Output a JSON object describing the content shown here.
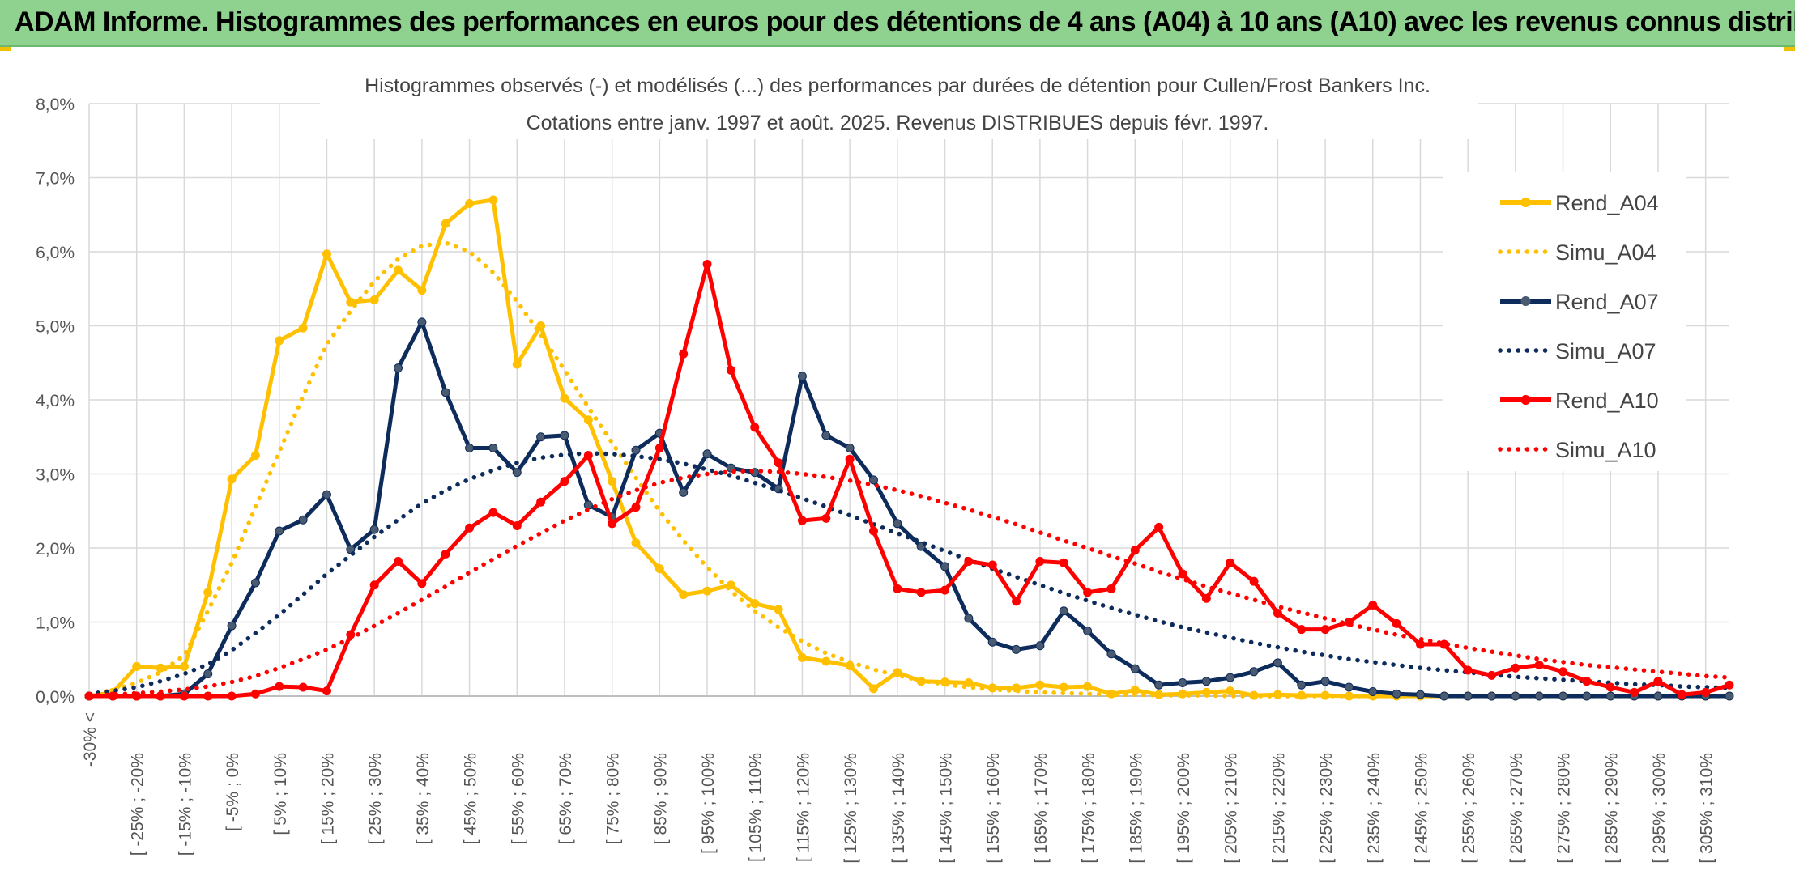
{
  "banner": {
    "title": "ADAM Informe. Histogrammes des performances en euros pour des détentions de 4 ans (A04) à 10 ans (A10) avec les revenus connus distribués"
  },
  "chart_data": {
    "type": "line",
    "title": "Histogrammes observés (-) et modélisés (...) des performances par durées de détention pour Cullen/Frost Bankers Inc.",
    "subtitle": "Cotations entre janv. 1997 et août. 2025. Revenus DISTRIBUES depuis févr. 1997.",
    "xlabel": "",
    "ylabel": "",
    "ylim": [
      0,
      8
    ],
    "yticks": [
      "0,0%",
      "1,0%",
      "2,0%",
      "3,0%",
      "4,0%",
      "5,0%",
      "6,0%",
      "7,0%",
      "8,0%"
    ],
    "grid": true,
    "legend_position": "right",
    "x_tick_labels": [
      "-30% <",
      "[ -25% ; -20%",
      "[ -15% ; -10%",
      "[ -5% ; 0%",
      "[ 5% ; 10%",
      "[ 15% ; 20%",
      "[ 25% ; 30%",
      "[ 35% ; 40%",
      "[ 45% ; 50%",
      "[ 55% ; 60%",
      "[ 65% ; 70%",
      "[ 75% ; 80%",
      "[ 85% ; 90%",
      "[ 95% ; 100%",
      "[ 105% ; 110%",
      "[ 115% ; 120%",
      "[ 125% ; 130%",
      "[ 135% ; 140%",
      "[ 145% ; 150%",
      "[ 155% ; 160%",
      "[ 165% ; 170%",
      "[ 175% ; 180%",
      "[ 185% ; 190%",
      "[ 195% ; 200%",
      "[ 205% ; 210%",
      "[ 215% ; 220%",
      "[ 225% ; 230%",
      "[ 235% ; 240%",
      "[ 245% ; 250%",
      "[ 255% ; 260%",
      "[ 265% ; 270%",
      "[ 275% ; 280%",
      "[ 285% ; 290%",
      "[ 295% ; 300%",
      "[ 305% ; 310%"
    ],
    "categories_count": 70,
    "series": [
      {
        "name": "Rend_A04",
        "style": "solid",
        "color": "#ffc000",
        "markers": true,
        "values": [
          0.0,
          0.05,
          0.4,
          0.38,
          0.4,
          1.4,
          2.93,
          3.25,
          4.8,
          4.97,
          5.97,
          5.32,
          5.35,
          5.75,
          5.48,
          6.38,
          6.65,
          6.7,
          4.48,
          5.0,
          4.02,
          3.73,
          2.9,
          2.07,
          1.72,
          1.37,
          1.42,
          1.5,
          1.25,
          1.17,
          0.52,
          0.47,
          0.41,
          0.1,
          0.32,
          0.2,
          0.19,
          0.18,
          0.11,
          0.11,
          0.15,
          0.12,
          0.13,
          0.03,
          0.08,
          0.02,
          0.03,
          0.05,
          0.07,
          0.01,
          0.02,
          0.01,
          0.01,
          0.0,
          0.0,
          0.0,
          0.0,
          0.0,
          0.0,
          0.0,
          0.0,
          0.0,
          0.0,
          0.0,
          0.0,
          0.0,
          0.0,
          0.0,
          0.0,
          0.0
        ]
      },
      {
        "name": "Simu_A04",
        "style": "dotted",
        "color": "#ffc000",
        "markers": false,
        "values": [
          0.02,
          0.08,
          0.18,
          0.32,
          0.55,
          1.15,
          1.8,
          2.55,
          3.3,
          4.05,
          4.75,
          5.2,
          5.6,
          5.9,
          6.08,
          6.12,
          6.0,
          5.72,
          5.33,
          4.88,
          4.4,
          3.9,
          3.42,
          2.95,
          2.5,
          2.1,
          1.74,
          1.42,
          1.15,
          0.93,
          0.74,
          0.58,
          0.46,
          0.36,
          0.28,
          0.21,
          0.16,
          0.12,
          0.09,
          0.07,
          0.05,
          0.04,
          0.03,
          0.02,
          0.02,
          0.01,
          0.01,
          0.01,
          0.0,
          0.0,
          0.0,
          0.0,
          0.0,
          0.0,
          0.0,
          0.0,
          0.0,
          0.0,
          0.0,
          0.0,
          0.0,
          0.0,
          0.0,
          0.0,
          0.0,
          0.0,
          0.0,
          0.0,
          0.0,
          0.0
        ]
      },
      {
        "name": "Rend_A07",
        "style": "solid",
        "color": "#0d2c5c",
        "markers": true,
        "values": [
          0.0,
          0.0,
          0.0,
          0.0,
          0.03,
          0.3,
          0.95,
          1.53,
          2.23,
          2.38,
          2.72,
          1.98,
          2.25,
          4.43,
          5.05,
          4.1,
          3.35,
          3.35,
          3.02,
          3.5,
          3.52,
          2.58,
          2.42,
          3.32,
          3.55,
          2.75,
          3.27,
          3.08,
          3.02,
          2.8,
          4.32,
          3.52,
          3.35,
          2.92,
          2.33,
          2.02,
          1.75,
          1.05,
          0.73,
          0.63,
          0.68,
          1.15,
          0.88,
          0.57,
          0.37,
          0.15,
          0.18,
          0.2,
          0.25,
          0.33,
          0.45,
          0.15,
          0.2,
          0.12,
          0.06,
          0.03,
          0.02,
          0.0,
          0.0,
          0.0,
          0.0,
          0.0,
          0.0,
          0.0,
          0.0,
          0.0,
          0.0,
          0.0,
          0.0,
          0.0
        ]
      },
      {
        "name": "Simu_A07",
        "style": "dotted",
        "color": "#0d2c5c",
        "markers": false,
        "values": [
          0.03,
          0.07,
          0.12,
          0.2,
          0.3,
          0.43,
          0.62,
          0.85,
          1.1,
          1.37,
          1.65,
          1.9,
          2.15,
          2.38,
          2.6,
          2.78,
          2.93,
          3.05,
          3.15,
          3.22,
          3.26,
          3.28,
          3.27,
          3.24,
          3.2,
          3.14,
          3.06,
          2.98,
          2.88,
          2.78,
          2.67,
          2.56,
          2.44,
          2.32,
          2.2,
          2.08,
          1.96,
          1.84,
          1.72,
          1.61,
          1.5,
          1.39,
          1.29,
          1.19,
          1.1,
          1.01,
          0.93,
          0.86,
          0.79,
          0.72,
          0.66,
          0.6,
          0.55,
          0.5,
          0.46,
          0.42,
          0.38,
          0.35,
          0.32,
          0.29,
          0.26,
          0.24,
          0.22,
          0.2,
          0.18,
          0.16,
          0.15,
          0.13,
          0.12,
          0.11
        ]
      },
      {
        "name": "Rend_A10",
        "style": "solid",
        "color": "#ff0000",
        "markers": true,
        "values": [
          0.0,
          0.0,
          0.0,
          0.0,
          0.0,
          0.0,
          0.0,
          0.03,
          0.13,
          0.12,
          0.07,
          0.83,
          1.5,
          1.82,
          1.52,
          1.92,
          2.27,
          2.48,
          2.3,
          2.62,
          2.9,
          3.25,
          2.33,
          2.55,
          3.35,
          4.62,
          5.83,
          4.4,
          3.63,
          3.15,
          2.37,
          2.4,
          3.2,
          2.23,
          1.45,
          1.4,
          1.43,
          1.82,
          1.77,
          1.28,
          1.82,
          1.8,
          1.4,
          1.45,
          1.97,
          2.28,
          1.65,
          1.32,
          1.8,
          1.55,
          1.12,
          0.9,
          0.9,
          1.0,
          1.23,
          0.98,
          0.7,
          0.7,
          0.35,
          0.28,
          0.38,
          0.42,
          0.33,
          0.2,
          0.12,
          0.05,
          0.2,
          0.02,
          0.05,
          0.15
        ]
      },
      {
        "name": "Simu_A10",
        "style": "dotted",
        "color": "#ff0000",
        "markers": false,
        "values": [
          0.01,
          0.02,
          0.04,
          0.06,
          0.09,
          0.13,
          0.19,
          0.27,
          0.38,
          0.5,
          0.63,
          0.78,
          0.95,
          1.12,
          1.3,
          1.48,
          1.67,
          1.85,
          2.03,
          2.2,
          2.37,
          2.52,
          2.66,
          2.78,
          2.88,
          2.95,
          3.0,
          3.03,
          3.04,
          3.03,
          3.0,
          2.96,
          2.91,
          2.85,
          2.78,
          2.7,
          2.61,
          2.52,
          2.42,
          2.32,
          2.21,
          2.1,
          2.0,
          1.89,
          1.79,
          1.68,
          1.58,
          1.48,
          1.39,
          1.3,
          1.21,
          1.13,
          1.05,
          0.97,
          0.9,
          0.83,
          0.77,
          0.71,
          0.65,
          0.6,
          0.55,
          0.5,
          0.46,
          0.42,
          0.39,
          0.36,
          0.33,
          0.3,
          0.27,
          0.25
        ]
      }
    ]
  }
}
